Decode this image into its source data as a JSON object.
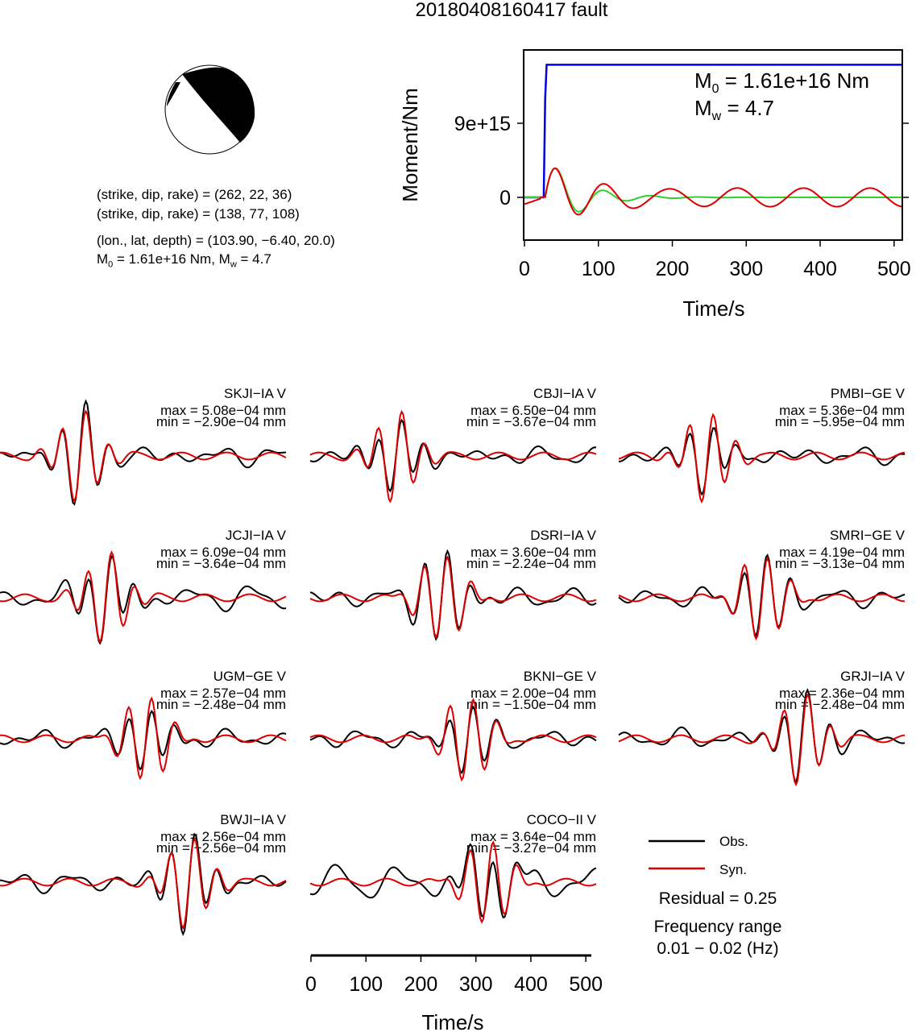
{
  "title": "20180408160417 fault",
  "focal_mechanism": {
    "plane1": "(strike, dip, rake) = (262, 22, 36)",
    "plane2": "(strike, dip, rake) = (138, 77, 108)",
    "location": "(lon., lat, depth) = (103.90, −6.40, 20.0)",
    "moment_prefix": "M",
    "moment_sub": "0",
    "moment_value": " = 1.61e+16 Nm, M",
    "mag_sub": "w",
    "mag_value": " = 4.7"
  },
  "colors": {
    "observed": "#000000",
    "synthetic": "#dd0000",
    "moment_line": "#0000dd",
    "moment_rate_model": "#33cc33",
    "beachball_compressional": "#000000",
    "beachball_dilatational": "#ffffff"
  },
  "chart_data": [
    {
      "type": "line",
      "title": "",
      "xlabel": "Time/s",
      "ylabel": "Moment/Nm",
      "xlim": [
        0,
        510
      ],
      "xticks": [
        0,
        100,
        200,
        300,
        400,
        500
      ],
      "ytick_labels": [
        "0",
        "9e+15"
      ],
      "annotation": {
        "m0_prefix": "M",
        "m0_sub": "0",
        "m0_value": " = 1.61e+16 Nm",
        "mw_prefix": "M",
        "mw_sub": "w",
        "mw_value": " = 4.7"
      },
      "series": [
        {
          "color": "#0000dd",
          "x": [
            0,
            26,
            28,
            30,
            510
          ],
          "y": [
            0,
            0,
            1.2e+16,
            1.61e+16,
            1.61e+16
          ]
        }
      ]
    },
    {
      "type": "line",
      "xlabel": "Time/s",
      "xlim": [
        0,
        510
      ],
      "xticks": [
        0,
        100,
        200,
        300,
        400,
        500
      ],
      "legend": {
        "position": "bottom-right",
        "entries": [
          "Obs.",
          "Syn."
        ]
      },
      "residual": "Residual = 0.25",
      "frequency_label": "Frequency range",
      "frequency_value": "0.01 − 0.02 (Hz)",
      "stations": [
        {
          "name": "SKJI−IA V",
          "max": "max = 5.08e−04 mm",
          "min": "min = −2.90e−04 mm"
        },
        {
          "name": "CBJI−IA V",
          "max": "max = 6.50e−04 mm",
          "min": "min = −3.67e−04 mm"
        },
        {
          "name": "PMBI−GE V",
          "max": "max = 5.36e−04 mm",
          "min": "min = −5.95e−04 mm"
        },
        {
          "name": "JCJI−IA V",
          "max": "max = 6.09e−04 mm",
          "min": "min = −3.64e−04 mm"
        },
        {
          "name": "DSRI−IA V",
          "max": "max = 3.60e−04 mm",
          "min": "min = −2.24e−04 mm"
        },
        {
          "name": "SMRI−GE V",
          "max": "max = 4.19e−04 mm",
          "min": "min = −3.13e−04 mm"
        },
        {
          "name": "UGM−GE V",
          "max": "max = 2.57e−04 mm",
          "min": "min = −2.48e−04 mm"
        },
        {
          "name": "BKNI−GE V",
          "max": "max = 2.00e−04 mm",
          "min": "min = −1.50e−04 mm"
        },
        {
          "name": "GRJI−IA V",
          "max": "max = 2.36e−04 mm",
          "min": "min = −2.48e−04 mm"
        },
        {
          "name": "BWJI−IA V",
          "max": "max = 2.56e−04 mm",
          "min": "min = −2.56e−04 mm"
        },
        {
          "name": "COCO−II V",
          "max": "max = 3.64e−04 mm",
          "min": "min = −3.27e−04 mm"
        }
      ]
    }
  ]
}
